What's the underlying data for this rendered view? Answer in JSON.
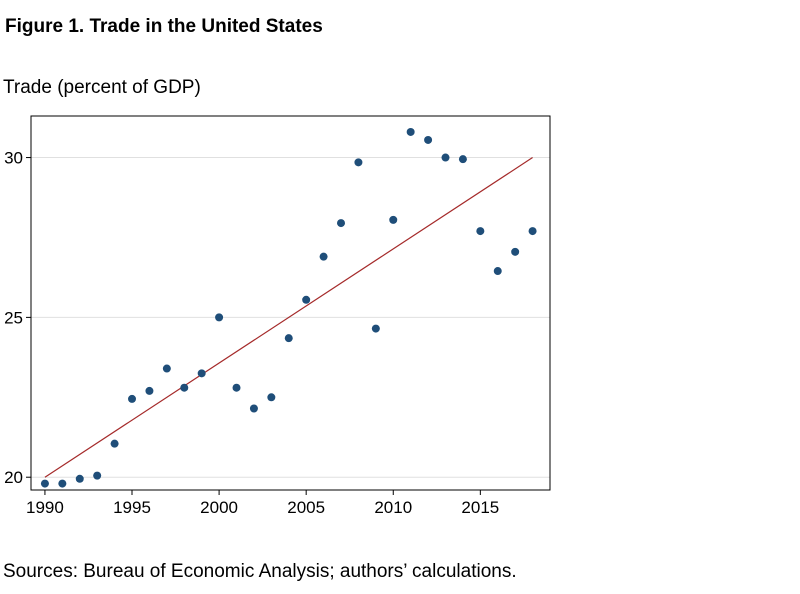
{
  "figure_title": "Figure 1. Trade in the United States",
  "source": "Sources: Bureau of Economic Analysis; authors’ calculations.",
  "colors": {
    "points": "#1f4e79",
    "fit_line": "#a52a2a",
    "grid": "#e0e0e0",
    "frame": "#000000"
  },
  "chart_data": {
    "type": "scatter",
    "title": "",
    "ylabel": "Trade (percent of GDP)",
    "xlabel": "",
    "xlim": [
      1989.2,
      2019.0
    ],
    "ylim": [
      19.6,
      31.3
    ],
    "x_ticks": [
      1990,
      1995,
      2000,
      2005,
      2010,
      2015
    ],
    "y_ticks": [
      20,
      25,
      30
    ],
    "grid": "horizontal",
    "series": [
      {
        "x": [
          1990,
          1991,
          1992,
          1993,
          1994,
          1995,
          1996,
          1997,
          1998,
          1999,
          2000,
          2001,
          2002,
          2003,
          2004,
          2005,
          2006,
          2007,
          2008,
          2009,
          2010,
          2011,
          2012,
          2013,
          2014,
          2015,
          2016,
          2017,
          2018
        ],
        "y": [
          19.8,
          19.8,
          19.95,
          20.05,
          21.05,
          22.45,
          22.7,
          23.4,
          22.8,
          23.25,
          25.0,
          22.8,
          22.15,
          22.5,
          24.35,
          25.55,
          26.9,
          27.95,
          29.85,
          24.65,
          28.05,
          30.8,
          30.55,
          30.0,
          29.95,
          27.7,
          26.45,
          27.05,
          27.7
        ]
      }
    ],
    "trend_line": {
      "x": [
        1990,
        2018
      ],
      "y": [
        20.0,
        30.0
      ]
    }
  }
}
